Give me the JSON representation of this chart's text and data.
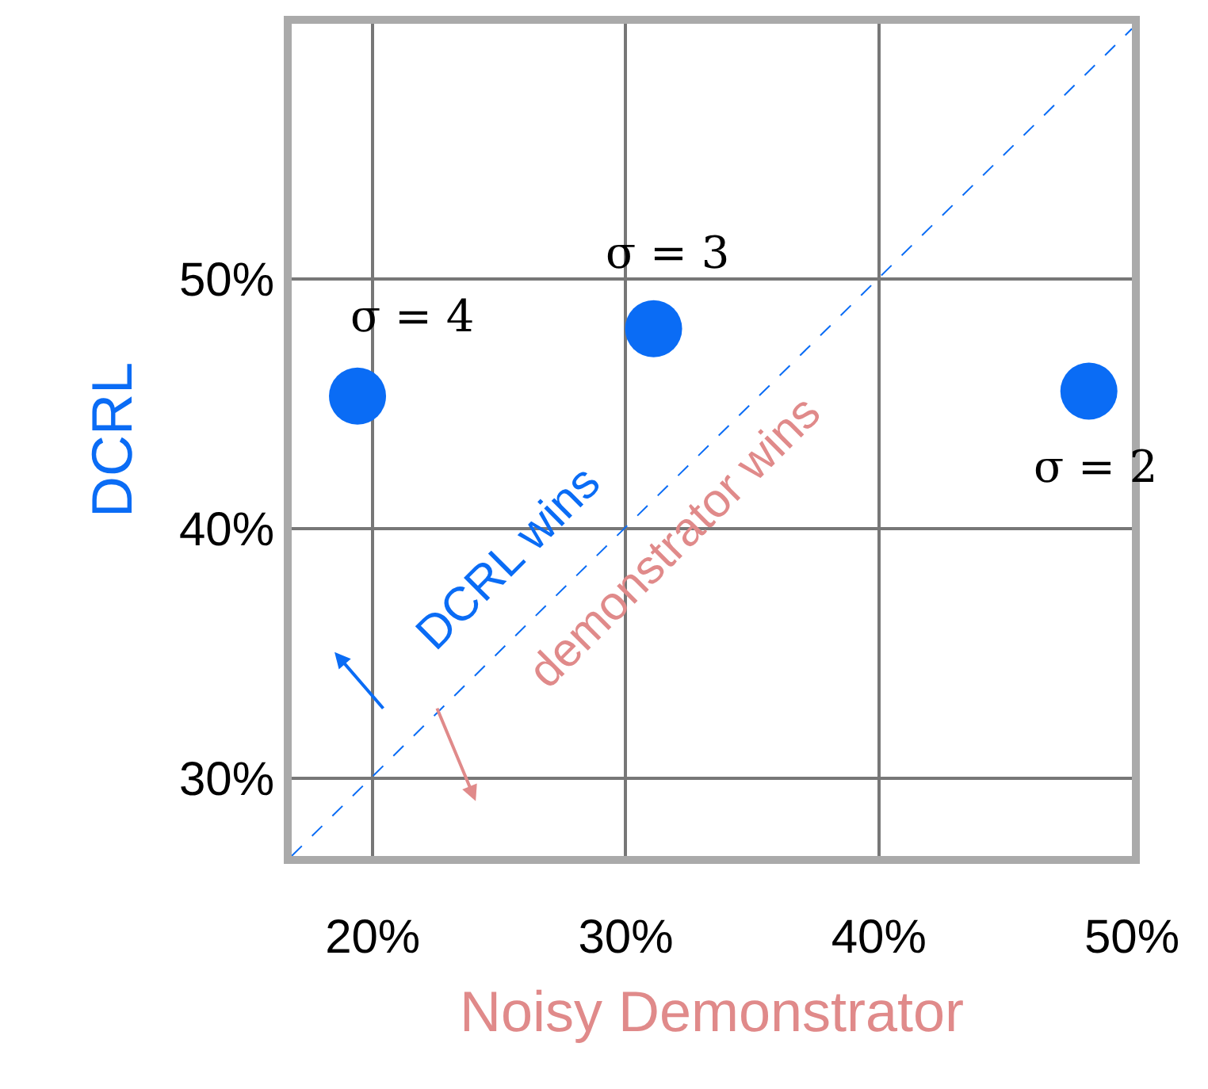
{
  "chart_data": {
    "type": "scatter",
    "xlabel": "Noisy Demonstrator",
    "ylabel": "DCRL",
    "xlim": [
      16.8,
      50
    ],
    "ylim": [
      26.9,
      60.2
    ],
    "xticks": [
      {
        "value": 20,
        "label": "20%"
      },
      {
        "value": 30,
        "label": "30%"
      },
      {
        "value": 40,
        "label": "40%"
      },
      {
        "value": 50,
        "label": "50%"
      }
    ],
    "yticks": [
      {
        "value": 30,
        "label": "30%"
      },
      {
        "value": 40,
        "label": "40%"
      },
      {
        "value": 50,
        "label": "50%"
      }
    ],
    "grid": true,
    "marker": "circle",
    "series": [
      {
        "color": "#0a6cf5",
        "x": [
          19.4,
          31.1,
          48.3
        ],
        "values": [
          45.3,
          48.0,
          45.5
        ]
      },
      {
        "type": "line",
        "color": "#0a6cf5",
        "line_style": "dashed",
        "marker": "none",
        "x": [
          16.8,
          50
        ],
        "values": [
          26.9,
          60
        ]
      }
    ],
    "annotations": [
      {
        "text": "σ = 4",
        "x": 19.4,
        "y": 45.3
      },
      {
        "text": "σ = 3",
        "x": 31.1,
        "y": 48.0
      },
      {
        "text": "σ = 2",
        "x": 48.3,
        "y": 45.5
      },
      "DCRL wins",
      "demonstrator wins"
    ]
  }
}
